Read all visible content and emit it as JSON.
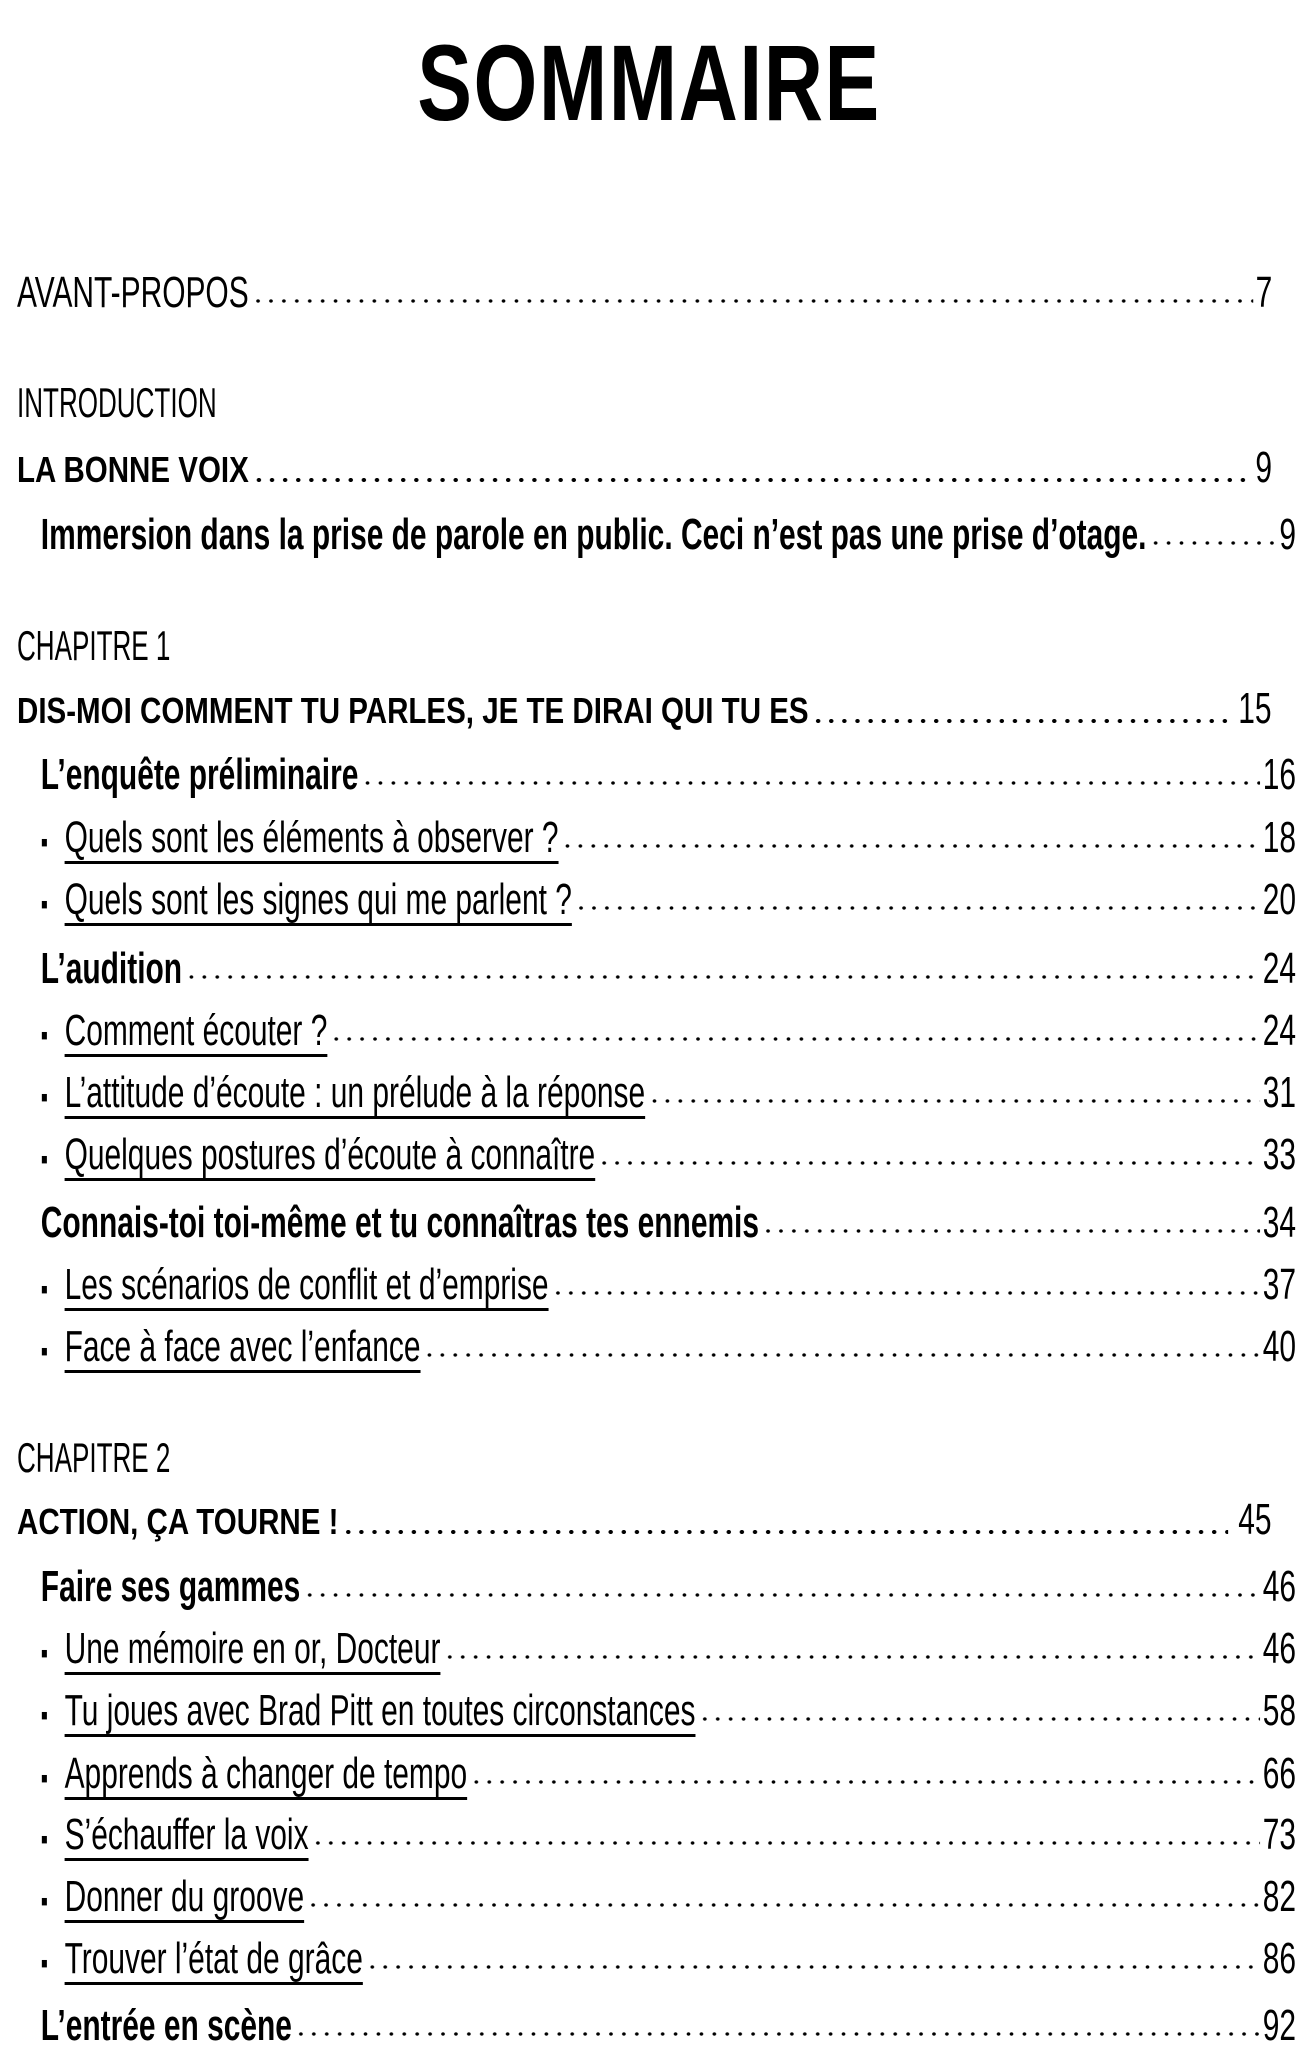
{
  "title": "SOMMAIRE",
  "entries": [
    {
      "type": "cond",
      "level": 1,
      "text": "AVANT-PROPOS",
      "page": "7"
    },
    {
      "type": "label",
      "text": "INTRODUCTION"
    },
    {
      "type": "bold",
      "text": "LA BONNE VOIX",
      "page": "9"
    },
    {
      "type": "cond",
      "level": 2,
      "text": "Immersion dans la prise de parole en public. Ceci n’est pas une prise d’otage.",
      "page": "9"
    },
    {
      "type": "label",
      "text": "CHAPITRE 1"
    },
    {
      "type": "bold",
      "text": "DIS-MOI COMMENT TU PARLES, JE TE DIRAI QUI TU ES",
      "page": "15"
    },
    {
      "type": "cond",
      "level": 2,
      "text": "L’enquête préliminaire",
      "page": "16"
    },
    {
      "type": "cond",
      "level": 3,
      "text": "Quels sont les éléments à observer ?",
      "page": "18"
    },
    {
      "type": "cond",
      "level": 3,
      "text": "Quels sont les signes qui me parlent ?",
      "page": "20"
    },
    {
      "type": "cond",
      "level": 2,
      "text": "L’audition",
      "page": "24"
    },
    {
      "type": "cond",
      "level": 3,
      "text": "Comment écouter ?",
      "page": "24"
    },
    {
      "type": "cond",
      "level": 3,
      "text": "L’attitude d’écoute : un prélude à la réponse",
      "page": "31"
    },
    {
      "type": "cond",
      "level": 3,
      "text": "Quelques postures d’écoute à connaître",
      "page": "33"
    },
    {
      "type": "cond",
      "level": 2,
      "text": "Connais-toi toi-même et tu connaîtras tes ennemis",
      "page": "34"
    },
    {
      "type": "cond",
      "level": 3,
      "text": "Les scénarios de conflit et d’emprise",
      "page": "37"
    },
    {
      "type": "cond",
      "level": 3,
      "text": "Face à face avec l’enfance",
      "page": "40"
    },
    {
      "type": "label",
      "text": "CHAPITRE 2"
    },
    {
      "type": "bold",
      "text": "ACTION, ÇA TOURNE !",
      "page": "45"
    },
    {
      "type": "cond",
      "level": 2,
      "text": "Faire ses gammes",
      "page": "46"
    },
    {
      "type": "cond",
      "level": 3,
      "text": "Une mémoire en or, Docteur",
      "page": "46"
    },
    {
      "type": "cond",
      "level": 3,
      "text": "Tu joues avec Brad Pitt en toutes circonstances",
      "page": "58"
    },
    {
      "type": "cond",
      "level": 3,
      "text": "Apprends à changer de tempo",
      "page": "66"
    },
    {
      "type": "cond",
      "level": 3,
      "text": "S’échauffer la voix",
      "page": "73"
    },
    {
      "type": "cond",
      "level": 3,
      "text": "Donner du groove",
      "page": "82"
    },
    {
      "type": "cond",
      "level": 3,
      "text": "Trouver l’état de grâce",
      "page": "86"
    },
    {
      "type": "cond",
      "level": 2,
      "text": "L’entrée en scène",
      "page": "92"
    }
  ]
}
